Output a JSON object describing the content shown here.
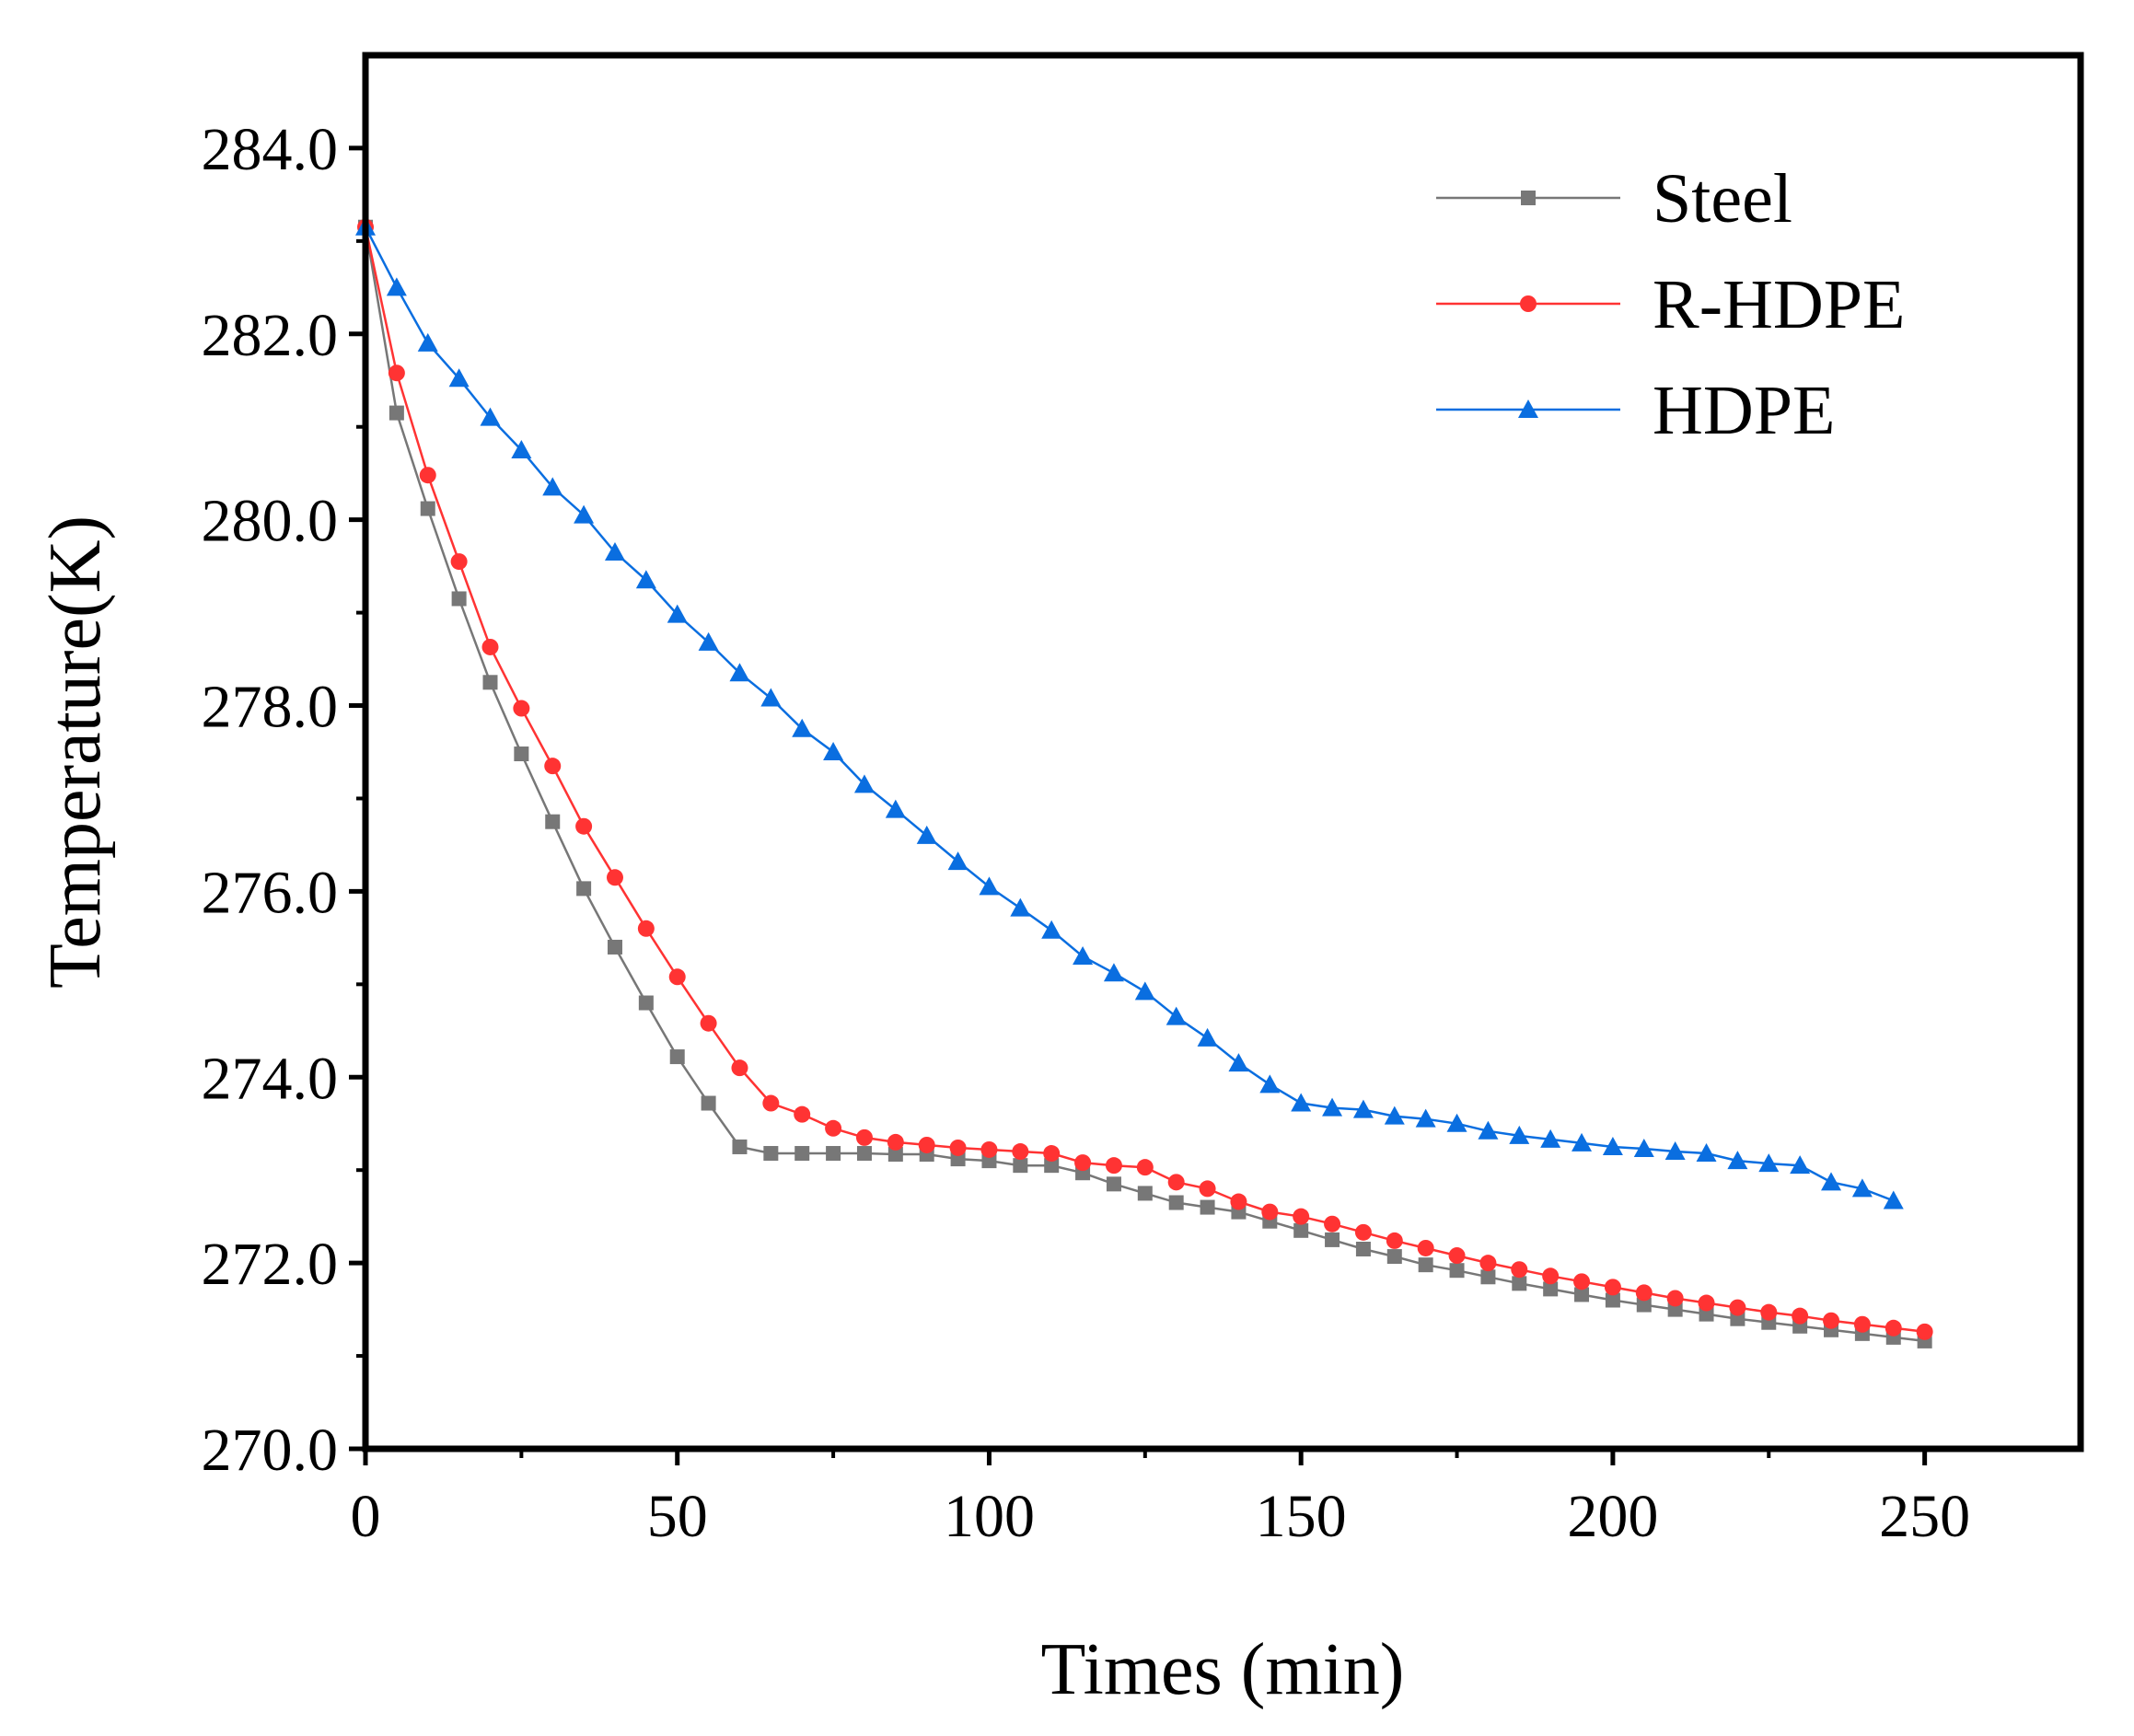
{
  "chart_data": {
    "type": "line",
    "title": "",
    "xlabel": "Times (min)",
    "ylabel": "Temperature(K)",
    "xlim": [
      0,
      275
    ],
    "ylim": [
      270,
      285
    ],
    "xticks": [
      0,
      50,
      100,
      150,
      200,
      250
    ],
    "xtick_labels": [
      "0",
      "50",
      "100",
      "150",
      "200",
      "250"
    ],
    "yticks": [
      270,
      272,
      274,
      276,
      278,
      280,
      282,
      284
    ],
    "ytick_labels": [
      "270.0",
      "272.0",
      "274.0",
      "276.0",
      "278.0",
      "280.0",
      "282.0",
      "284.0"
    ],
    "legend_position": "top-right",
    "series": [
      {
        "name": "Steel",
        "color": "#777777",
        "marker": "square",
        "x": [
          0,
          5,
          10,
          15,
          20,
          25,
          30,
          35,
          40,
          45,
          50,
          55,
          60,
          65,
          70,
          75,
          80,
          85,
          90,
          95,
          100,
          105,
          110,
          115,
          120,
          125,
          130,
          135,
          140,
          145,
          150,
          155,
          160,
          165,
          170,
          175,
          180,
          185,
          190,
          195,
          200,
          205,
          210,
          215,
          220,
          225,
          230,
          235,
          240,
          245,
          250
        ],
        "values": [
          283.15,
          281.15,
          280.12,
          279.15,
          278.25,
          277.48,
          276.75,
          276.03,
          275.4,
          274.8,
          274.22,
          273.72,
          273.25,
          273.18,
          273.18,
          273.18,
          273.18,
          273.17,
          273.17,
          273.12,
          273.1,
          273.05,
          273.05,
          272.97,
          272.85,
          272.75,
          272.65,
          272.6,
          272.55,
          272.45,
          272.35,
          272.25,
          272.15,
          272.07,
          271.98,
          271.92,
          271.85,
          271.78,
          271.72,
          271.66,
          271.6,
          271.55,
          271.5,
          271.45,
          271.4,
          271.36,
          271.32,
          271.28,
          271.24,
          271.2,
          271.16
        ]
      },
      {
        "name": "R-HDPE",
        "color": "#ff3333",
        "marker": "circle",
        "x": [
          0,
          5,
          10,
          15,
          20,
          25,
          30,
          35,
          40,
          45,
          50,
          55,
          60,
          65,
          70,
          75,
          80,
          85,
          90,
          95,
          100,
          105,
          110,
          115,
          120,
          125,
          130,
          135,
          140,
          145,
          150,
          155,
          160,
          165,
          170,
          175,
          180,
          185,
          190,
          195,
          200,
          205,
          210,
          215,
          220,
          225,
          230,
          235,
          240,
          245,
          250
        ],
        "values": [
          283.15,
          281.58,
          280.48,
          279.55,
          278.63,
          277.97,
          277.35,
          276.7,
          276.15,
          275.6,
          275.08,
          274.58,
          274.1,
          273.72,
          273.6,
          273.45,
          273.35,
          273.3,
          273.27,
          273.24,
          273.22,
          273.2,
          273.18,
          273.08,
          273.05,
          273.03,
          272.87,
          272.8,
          272.66,
          272.55,
          272.5,
          272.42,
          272.33,
          272.24,
          272.16,
          272.08,
          272.0,
          271.93,
          271.86,
          271.8,
          271.74,
          271.68,
          271.62,
          271.57,
          271.52,
          271.47,
          271.43,
          271.38,
          271.34,
          271.3,
          271.26
        ]
      },
      {
        "name": "HDPE",
        "color": "#0a6ee0",
        "marker": "triangle",
        "x": [
          0,
          5,
          10,
          15,
          20,
          25,
          30,
          35,
          40,
          45,
          50,
          55,
          60,
          65,
          70,
          75,
          80,
          85,
          90,
          95,
          100,
          105,
          110,
          115,
          120,
          125,
          130,
          135,
          140,
          145,
          150,
          155,
          160,
          165,
          170,
          175,
          180,
          185,
          190,
          195,
          200,
          205,
          210,
          215,
          220,
          225,
          230,
          235,
          240,
          245
        ],
        "values": [
          283.15,
          282.5,
          281.9,
          281.52,
          281.1,
          280.75,
          280.35,
          280.05,
          279.65,
          279.35,
          278.98,
          278.68,
          278.35,
          278.08,
          277.75,
          277.5,
          277.15,
          276.88,
          276.6,
          276.32,
          276.05,
          275.82,
          275.58,
          275.3,
          275.12,
          274.92,
          274.65,
          274.42,
          274.15,
          273.92,
          273.72,
          273.67,
          273.65,
          273.58,
          273.55,
          273.5,
          273.42,
          273.37,
          273.33,
          273.29,
          273.25,
          273.23,
          273.2,
          273.18,
          273.1,
          273.07,
          273.05,
          272.87,
          272.8,
          272.67
        ]
      }
    ]
  }
}
